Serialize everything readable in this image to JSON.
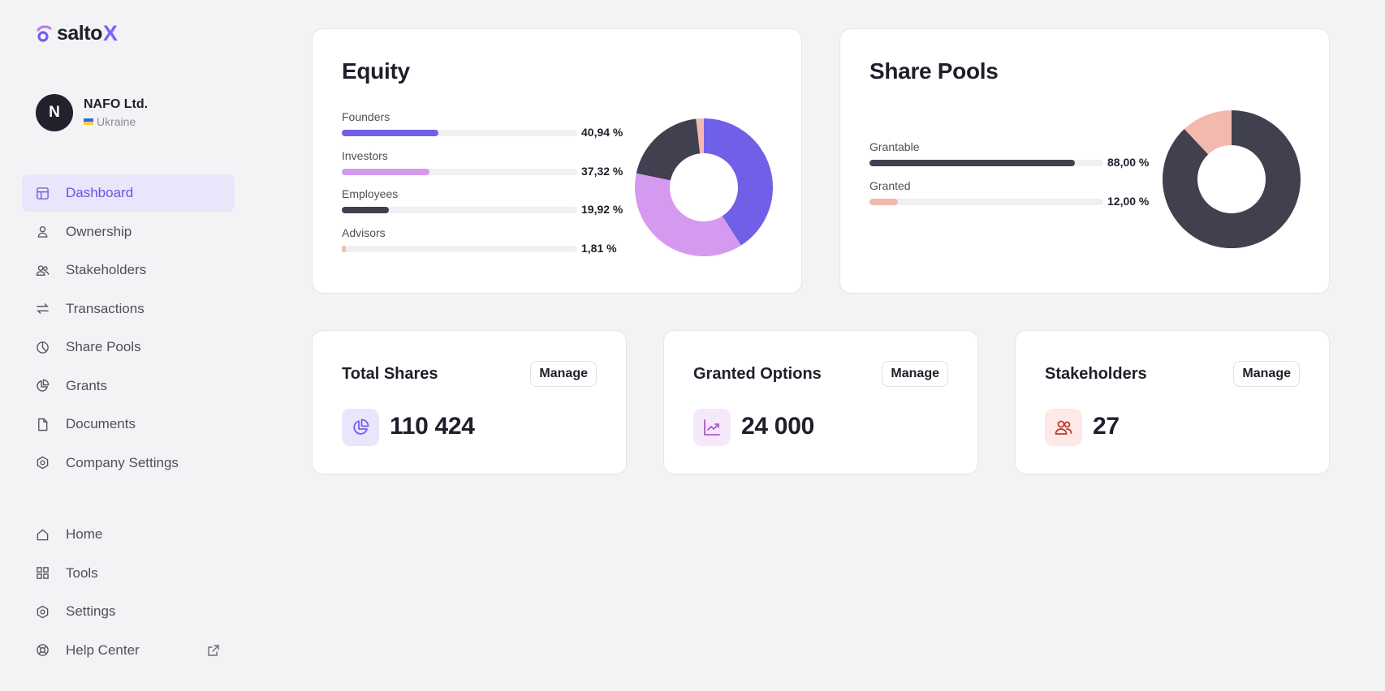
{
  "app": {
    "logo_text": "salto",
    "logo_accent": "X"
  },
  "company": {
    "initial": "N",
    "name": "NAFO Ltd.",
    "country": "Ukraine"
  },
  "nav_top": [
    {
      "label": "Dashboard",
      "icon": "dashboard-icon",
      "active": true
    },
    {
      "label": "Ownership",
      "icon": "person-icon"
    },
    {
      "label": "Stakeholders",
      "icon": "people-icon"
    },
    {
      "label": "Transactions",
      "icon": "arrows-icon"
    },
    {
      "label": "Share Pools",
      "icon": "pie-icon"
    },
    {
      "label": "Grants",
      "icon": "pie-slice-icon"
    },
    {
      "label": "Documents",
      "icon": "document-icon"
    },
    {
      "label": "Company Settings",
      "icon": "hexagon-settings-icon"
    }
  ],
  "nav_bottom": [
    {
      "label": "Home",
      "icon": "home-icon"
    },
    {
      "label": "Tools",
      "icon": "grid-icon"
    },
    {
      "label": "Settings",
      "icon": "settings-icon"
    },
    {
      "label": "Help Center",
      "icon": "lifebuoy-icon"
    }
  ],
  "equity": {
    "title": "Equity",
    "rows": [
      {
        "label": "Founders",
        "pct": "40,94 %",
        "value": 40.94,
        "color": "#7060e8"
      },
      {
        "label": "Investors",
        "pct": "37,32 %",
        "value": 37.32,
        "color": "#d59af0"
      },
      {
        "label": "Employees",
        "pct": "19,92 %",
        "value": 19.92,
        "color": "#41404f"
      },
      {
        "label": "Advisors",
        "pct": "1,81 %",
        "value": 1.81,
        "color": "#f4b9ae"
      }
    ]
  },
  "pools": {
    "title": "Share Pools",
    "rows": [
      {
        "label": "Grantable",
        "pct": "88,00 %",
        "value": 88.0,
        "color": "#41404f"
      },
      {
        "label": "Granted",
        "pct": "12,00 %",
        "value": 12.0,
        "color": "#f4b9ae"
      }
    ]
  },
  "stats": [
    {
      "title": "Total Shares",
      "value": "110 424",
      "button": "Manage",
      "icon": "pie-chart-icon",
      "icon_bg": "#e9e5fb",
      "icon_color": "#7060e8"
    },
    {
      "title": "Granted Options",
      "value": "24 000",
      "button": "Manage",
      "icon": "trend-up-icon",
      "icon_bg": "#f6e8fb",
      "icon_color": "#a85bc9"
    },
    {
      "title": "Stakeholders",
      "value": "27",
      "button": "Manage",
      "icon": "users-icon",
      "icon_bg": "#fde9e6",
      "icon_color": "#b93a2c"
    }
  ]
}
